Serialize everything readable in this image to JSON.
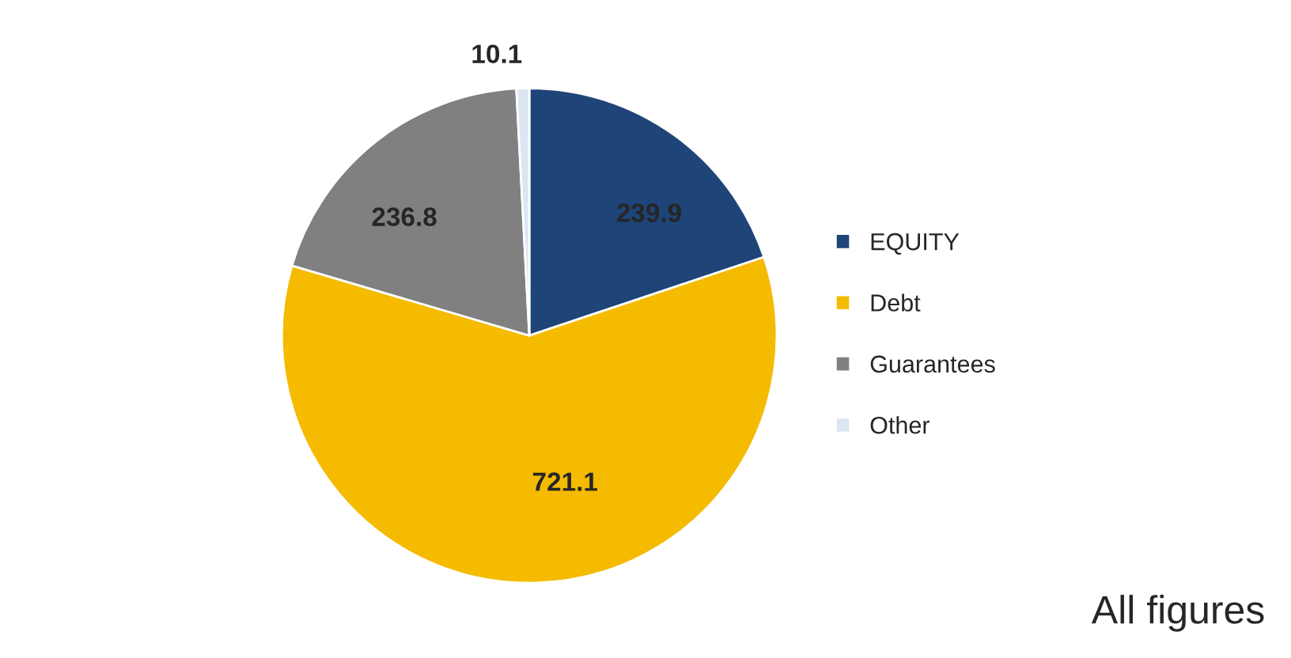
{
  "chart_data": {
    "type": "pie",
    "categories": [
      "EQUITY",
      "Debt",
      "Guarantees",
      "Other"
    ],
    "values": [
      239.9,
      721.1,
      236.8,
      10.1
    ],
    "colors": [
      "#1f4478",
      "#f5bb00",
      "#808080",
      "#dce6f2"
    ],
    "data_labels": true,
    "legend": "right",
    "annotations": [
      "All figures"
    ]
  }
}
